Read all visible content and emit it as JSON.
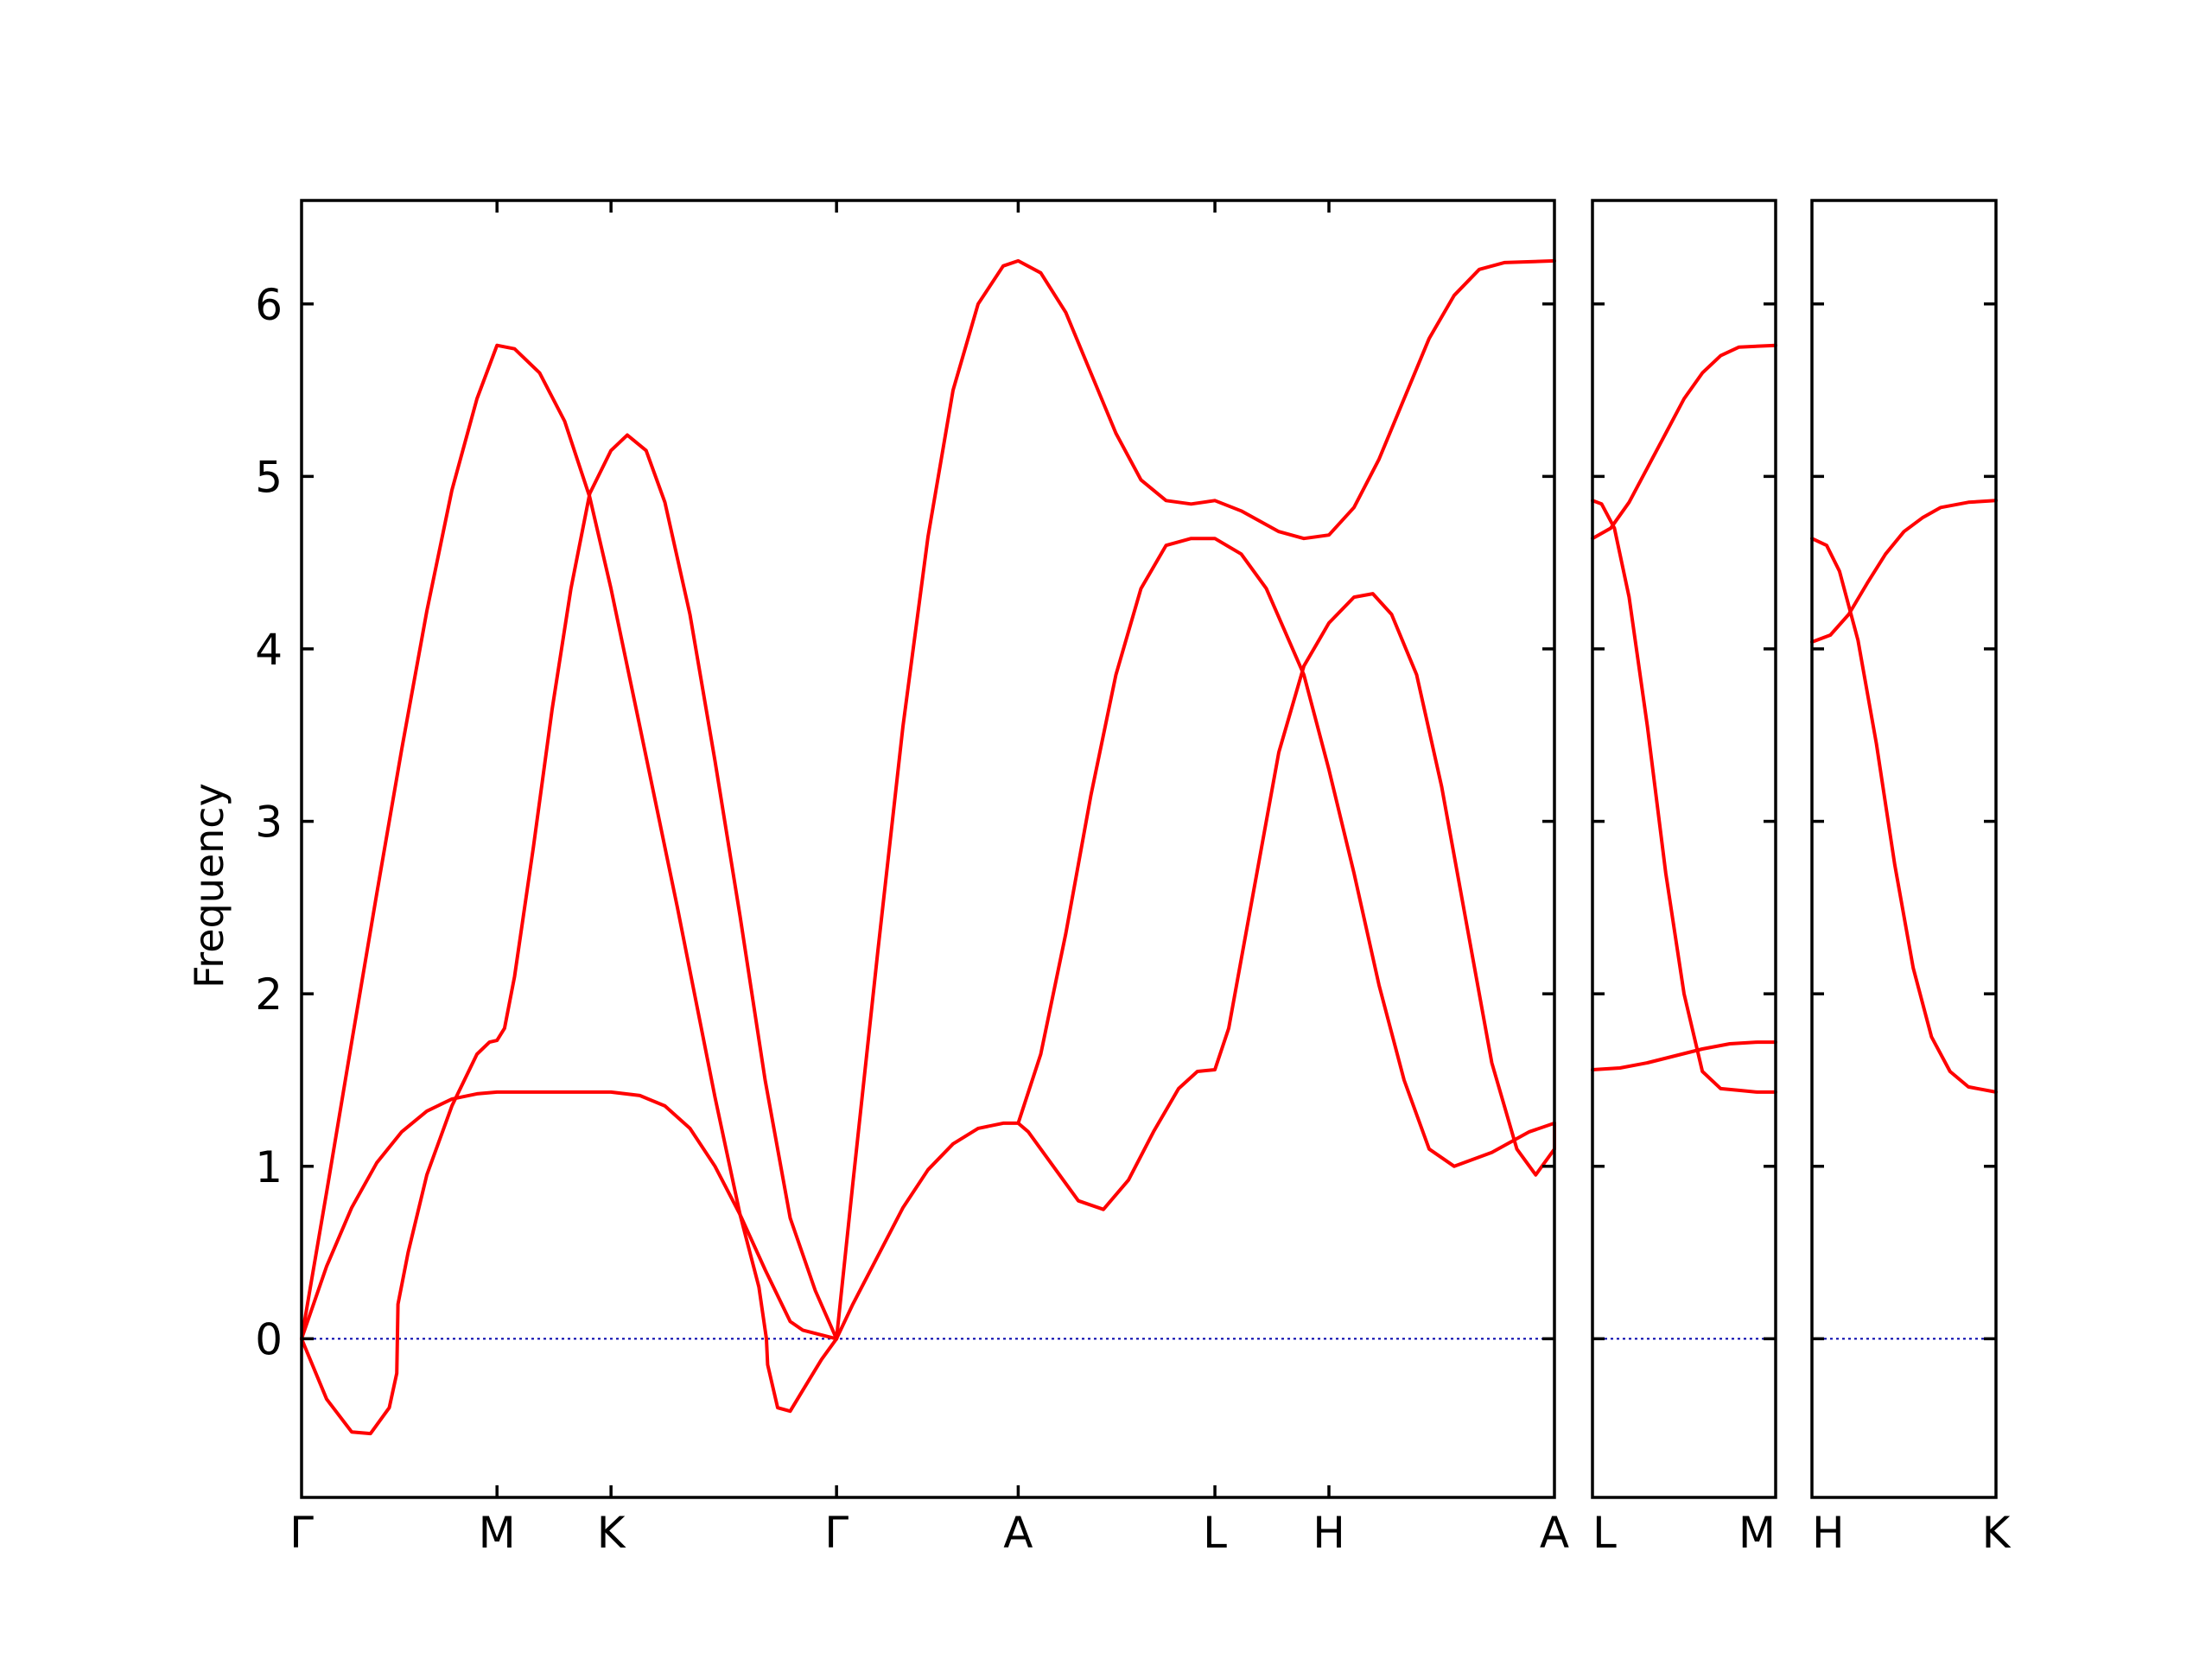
{
  "chart_data": {
    "type": "line",
    "title": "",
    "ylabel": "Frequency",
    "ylim": [
      -0.92,
      6.6
    ],
    "yticks": [
      0,
      1,
      2,
      3,
      4,
      5,
      6
    ],
    "zero_line": true,
    "colors": {
      "bands": "#ff0000",
      "zero_line": "#0000aa",
      "axes": "#000000"
    },
    "panels": [
      {
        "id": "panel-1",
        "xlim": [
          0,
          1
        ],
        "labels": [
          {
            "x": 0.0,
            "text": "Γ"
          },
          {
            "x": 0.156,
            "text": "M"
          },
          {
            "x": 0.247,
            "text": "K"
          },
          {
            "x": 0.427,
            "text": "Γ"
          },
          {
            "x": 0.572,
            "text": "A"
          },
          {
            "x": 0.729,
            "text": "L"
          },
          {
            "x": 0.82,
            "text": "H"
          },
          {
            "x": 1.0,
            "text": "A"
          }
        ],
        "series": [
          {
            "points": [
              [
                0,
                0
              ],
              [
                0.02,
                0.85
              ],
              [
                0.04,
                1.72
              ],
              [
                0.06,
                2.58
              ],
              [
                0.08,
                3.42
              ],
              [
                0.1,
                4.22
              ],
              [
                0.12,
                4.92
              ],
              [
                0.14,
                5.45
              ],
              [
                0.156,
                5.76
              ],
              [
                0.17,
                5.74
              ],
              [
                0.19,
                5.6
              ],
              [
                0.21,
                5.32
              ],
              [
                0.23,
                4.88
              ],
              [
                0.247,
                4.35
              ],
              [
                0.27,
                3.55
              ],
              [
                0.3,
                2.5
              ],
              [
                0.33,
                1.4
              ],
              [
                0.35,
                0.72
              ],
              [
                0.365,
                0.3
              ],
              [
                0.371,
                0
              ],
              [
                0.372,
                -0.15
              ],
              [
                0.38,
                -0.4
              ],
              [
                0.39,
                -0.42
              ],
              [
                0.4,
                -0.3
              ],
              [
                0.415,
                -0.12
              ],
              [
                0.427,
                0
              ]
            ]
          },
          {
            "points": [
              [
                0,
                0
              ],
              [
                0.02,
                -0.35
              ],
              [
                0.04,
                -0.54
              ],
              [
                0.055,
                -0.55
              ],
              [
                0.07,
                -0.4
              ],
              [
                0.076,
                -0.2
              ],
              [
                0.077,
                0.2
              ],
              [
                0.085,
                0.5
              ],
              [
                0.1,
                0.95
              ],
              [
                0.12,
                1.35
              ],
              [
                0.14,
                1.65
              ],
              [
                0.15,
                1.72
              ],
              [
                0.156,
                1.73
              ],
              [
                0.162,
                1.8
              ],
              [
                0.17,
                2.1
              ],
              [
                0.185,
                2.85
              ],
              [
                0.2,
                3.65
              ],
              [
                0.215,
                4.35
              ],
              [
                0.23,
                4.9
              ],
              [
                0.247,
                5.15
              ],
              [
                0.26,
                5.24
              ],
              [
                0.275,
                5.15
              ],
              [
                0.29,
                4.85
              ],
              [
                0.31,
                4.2
              ],
              [
                0.33,
                3.35
              ],
              [
                0.35,
                2.45
              ],
              [
                0.37,
                1.5
              ],
              [
                0.39,
                0.7
              ],
              [
                0.41,
                0.28
              ],
              [
                0.427,
                0
              ]
            ]
          },
          {
            "points": [
              [
                0,
                0
              ],
              [
                0.02,
                0.42
              ],
              [
                0.04,
                0.76
              ],
              [
                0.06,
                1.02
              ],
              [
                0.08,
                1.2
              ],
              [
                0.1,
                1.32
              ],
              [
                0.12,
                1.39
              ],
              [
                0.14,
                1.42
              ],
              [
                0.156,
                1.43
              ],
              [
                0.18,
                1.43
              ],
              [
                0.22,
                1.43
              ],
              [
                0.247,
                1.43
              ],
              [
                0.27,
                1.41
              ],
              [
                0.29,
                1.35
              ],
              [
                0.31,
                1.22
              ],
              [
                0.33,
                1.0
              ],
              [
                0.35,
                0.72
              ],
              [
                0.37,
                0.4
              ],
              [
                0.39,
                0.1
              ],
              [
                0.4,
                0.05
              ],
              [
                0.427,
                0
              ]
            ]
          },
          {
            "points": [
              [
                0.427,
                0
              ],
              [
                0.44,
                0.9
              ],
              [
                0.46,
                2.25
              ],
              [
                0.48,
                3.55
              ],
              [
                0.5,
                4.65
              ],
              [
                0.52,
                5.5
              ],
              [
                0.54,
                6.0
              ],
              [
                0.56,
                6.22
              ],
              [
                0.572,
                6.25
              ],
              [
                0.59,
                6.18
              ],
              [
                0.61,
                5.95
              ],
              [
                0.63,
                5.6
              ],
              [
                0.65,
                5.25
              ],
              [
                0.67,
                4.98
              ],
              [
                0.69,
                4.86
              ],
              [
                0.71,
                4.84
              ],
              [
                0.729,
                4.86
              ],
              [
                0.75,
                4.8
              ],
              [
                0.78,
                4.68
              ],
              [
                0.8,
                4.64
              ],
              [
                0.82,
                4.66
              ],
              [
                0.84,
                4.82
              ],
              [
                0.86,
                5.1
              ],
              [
                0.88,
                5.45
              ],
              [
                0.9,
                5.8
              ],
              [
                0.92,
                6.05
              ],
              [
                0.94,
                6.2
              ],
              [
                0.96,
                6.24
              ],
              [
                1.0,
                6.25
              ]
            ]
          },
          {
            "points": [
              [
                0.427,
                0
              ],
              [
                0.44,
                0.2
              ],
              [
                0.46,
                0.48
              ],
              [
                0.48,
                0.76
              ],
              [
                0.5,
                0.98
              ],
              [
                0.52,
                1.13
              ],
              [
                0.54,
                1.22
              ],
              [
                0.56,
                1.25
              ],
              [
                0.572,
                1.25
              ],
              [
                0.58,
                1.2
              ],
              [
                0.6,
                1.0
              ],
              [
                0.62,
                0.8
              ],
              [
                0.64,
                0.75
              ],
              [
                0.66,
                0.92
              ],
              [
                0.68,
                1.2
              ],
              [
                0.7,
                1.45
              ],
              [
                0.715,
                1.55
              ],
              [
                0.729,
                1.56
              ],
              [
                0.74,
                1.8
              ],
              [
                0.76,
                2.6
              ],
              [
                0.78,
                3.4
              ],
              [
                0.8,
                3.9
              ],
              [
                0.82,
                4.15
              ],
              [
                0.84,
                4.3
              ],
              [
                0.855,
                4.32
              ],
              [
                0.87,
                4.2
              ],
              [
                0.89,
                3.85
              ],
              [
                0.91,
                3.2
              ],
              [
                0.93,
                2.4
              ],
              [
                0.95,
                1.6
              ],
              [
                0.97,
                1.1
              ],
              [
                0.985,
                0.95
              ],
              [
                1.0,
                1.1
              ],
              [
                1.0,
                1.25
              ]
            ]
          },
          {
            "points": [
              [
                0.572,
                1.25
              ],
              [
                0.59,
                1.65
              ],
              [
                0.61,
                2.35
              ],
              [
                0.63,
                3.15
              ],
              [
                0.65,
                3.85
              ],
              [
                0.67,
                4.35
              ],
              [
                0.69,
                4.6
              ],
              [
                0.71,
                4.64
              ],
              [
                0.729,
                4.64
              ],
              [
                0.75,
                4.55
              ],
              [
                0.77,
                4.35
              ],
              [
                0.8,
                3.85
              ],
              [
                0.82,
                3.3
              ],
              [
                0.84,
                2.7
              ],
              [
                0.86,
                2.05
              ],
              [
                0.88,
                1.5
              ],
              [
                0.9,
                1.1
              ],
              [
                0.92,
                1.0
              ],
              [
                0.95,
                1.08
              ],
              [
                0.98,
                1.2
              ],
              [
                1.0,
                1.25
              ]
            ]
          }
        ]
      },
      {
        "id": "panel-2",
        "xlim": [
          0,
          1
        ],
        "labels": [
          {
            "x": 0.0,
            "text": "L"
          },
          {
            "x": 1.0,
            "text": "M"
          }
        ],
        "series": [
          {
            "points": [
              [
                0,
                4.64
              ],
              [
                0.1,
                4.7
              ],
              [
                0.2,
                4.85
              ],
              [
                0.3,
                5.05
              ],
              [
                0.4,
                5.25
              ],
              [
                0.5,
                5.45
              ],
              [
                0.6,
                5.6
              ],
              [
                0.7,
                5.7
              ],
              [
                0.8,
                5.75
              ],
              [
                1.0,
                5.76
              ]
            ]
          },
          {
            "points": [
              [
                0,
                4.86
              ],
              [
                0.05,
                4.84
              ],
              [
                0.12,
                4.7
              ],
              [
                0.2,
                4.3
              ],
              [
                0.3,
                3.55
              ],
              [
                0.4,
                2.7
              ],
              [
                0.5,
                2.0
              ],
              [
                0.6,
                1.55
              ],
              [
                0.7,
                1.45
              ],
              [
                0.8,
                1.44
              ],
              [
                0.9,
                1.43
              ],
              [
                1.0,
                1.43
              ]
            ]
          },
          {
            "points": [
              [
                0,
                1.56
              ],
              [
                0.15,
                1.57
              ],
              [
                0.3,
                1.6
              ],
              [
                0.45,
                1.64
              ],
              [
                0.6,
                1.68
              ],
              [
                0.75,
                1.71
              ],
              [
                0.9,
                1.72
              ],
              [
                1.0,
                1.72
              ]
            ]
          }
        ]
      },
      {
        "id": "panel-3",
        "xlim": [
          0,
          1
        ],
        "labels": [
          {
            "x": 0.0,
            "text": "H"
          },
          {
            "x": 1.0,
            "text": "K"
          }
        ],
        "series": [
          {
            "points": [
              [
                0,
                4.04
              ],
              [
                0.1,
                4.08
              ],
              [
                0.2,
                4.2
              ],
              [
                0.3,
                4.38
              ],
              [
                0.4,
                4.55
              ],
              [
                0.5,
                4.68
              ],
              [
                0.6,
                4.76
              ],
              [
                0.7,
                4.82
              ],
              [
                0.85,
                4.85
              ],
              [
                1.0,
                4.86
              ]
            ]
          },
          {
            "points": [
              [
                0,
                4.64
              ],
              [
                0.08,
                4.6
              ],
              [
                0.15,
                4.45
              ],
              [
                0.25,
                4.05
              ],
              [
                0.35,
                3.45
              ],
              [
                0.45,
                2.75
              ],
              [
                0.55,
                2.15
              ],
              [
                0.65,
                1.75
              ],
              [
                0.75,
                1.55
              ],
              [
                0.85,
                1.46
              ],
              [
                1.0,
                1.43
              ]
            ]
          }
        ]
      }
    ]
  }
}
